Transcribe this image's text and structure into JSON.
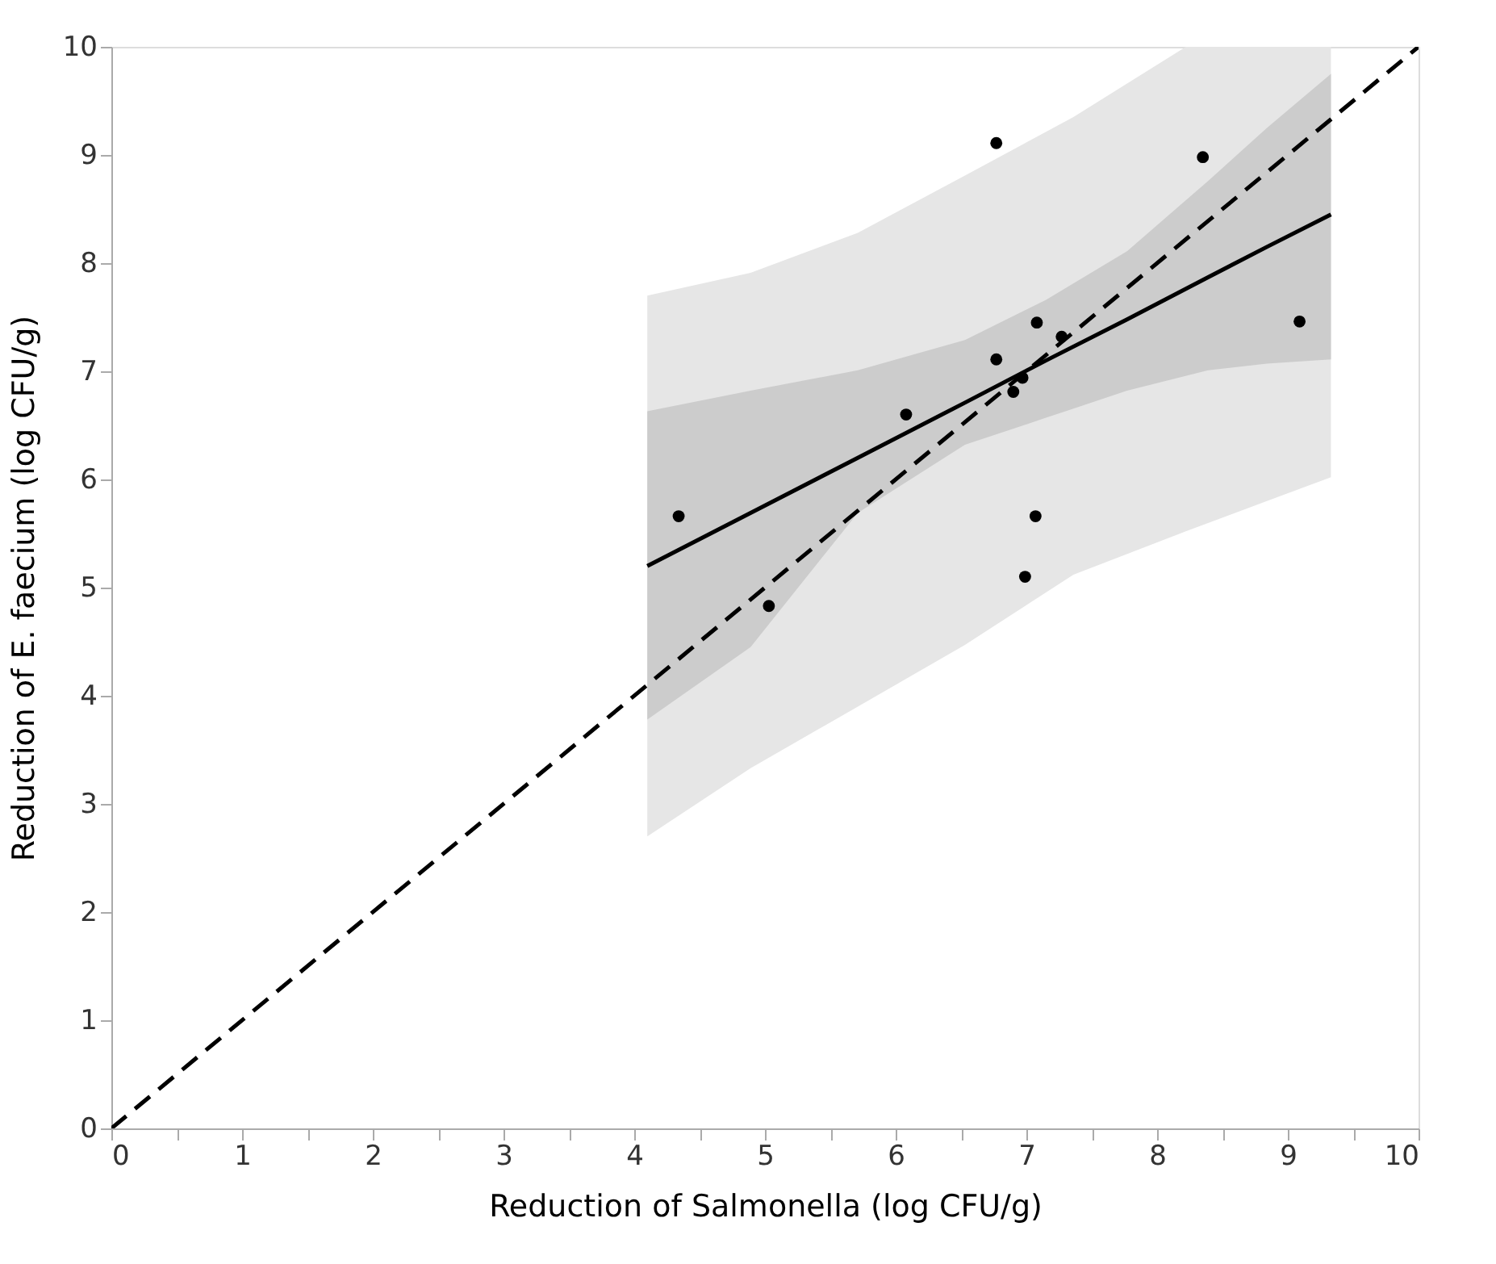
{
  "chart_data": {
    "type": "scatter",
    "xlabel": "Reduction of Salmonella (log CFU/g)",
    "ylabel": "Reduction of E. faecium (log CFU/g)",
    "xlim": [
      0,
      10
    ],
    "ylim": [
      0,
      10
    ],
    "xticks": [
      0,
      {
        "value": 0.5,
        "label": null
      },
      1,
      {
        "value": 1.5,
        "label": null
      },
      2,
      {
        "value": 2.5,
        "label": null
      },
      3,
      {
        "value": 3.5,
        "label": null
      },
      4,
      {
        "value": 4.5,
        "label": null
      },
      5,
      {
        "value": 5.5,
        "label": null
      },
      6,
      {
        "value": 6.5,
        "label": null
      },
      7,
      {
        "value": 7.5,
        "label": null
      },
      8,
      {
        "value": 8.5,
        "label": null
      },
      9,
      {
        "value": 9.5,
        "label": null
      },
      10
    ],
    "yticks": [
      0,
      1,
      2,
      3,
      4,
      5,
      6,
      7,
      8,
      9,
      10
    ],
    "grid": false,
    "series": [
      {
        "type": "line",
        "color": "#e6e6e6",
        "x": [
          4.1,
          4.89,
          5.71,
          6.53,
          7.36,
          8.22,
          8.84,
          9.33
        ],
        "values": [
          null,
          null,
          null,
          null,
          null,
          null,
          null,
          null
        ],
        "lower": [
          2.7,
          3.33,
          3.9,
          4.47,
          5.12,
          5.52,
          5.8,
          6.02
        ],
        "upper": [
          7.7,
          7.91,
          8.28,
          8.81,
          9.35,
          10,
          10,
          10
        ]
      },
      {
        "type": "line",
        "color": "#000000",
        "line_style": "solid",
        "marker": "none",
        "x": [
          4.1,
          4.89,
          5.71,
          6.53,
          7.15,
          7.77,
          8.39,
          8.84,
          9.33
        ],
        "values": [
          5.2,
          5.69,
          6.2,
          6.71,
          7.1,
          7.48,
          7.87,
          8.15,
          8.45
        ],
        "lower": [
          3.78,
          4.45,
          5.69,
          6.32,
          6.57,
          6.82,
          7.01,
          7.07,
          7.11
        ],
        "upper": [
          6.63,
          6.82,
          7.01,
          7.29,
          7.66,
          8.11,
          8.76,
          9.25,
          9.75
        ]
      },
      {
        "type": "line",
        "color": "#000000",
        "line_style": "dashed",
        "marker": "none",
        "x": [
          0,
          10
        ],
        "values": [
          0,
          10
        ]
      },
      {
        "color": "#000000",
        "marker": "circle",
        "x": [
          4.34,
          5.03,
          6.08,
          6.77,
          6.77,
          6.9,
          6.97,
          7.08,
          7.27,
          7.07,
          6.99,
          8.35,
          9.09
        ],
        "values": [
          5.66,
          4.83,
          6.6,
          9.11,
          7.11,
          6.81,
          6.94,
          7.45,
          7.32,
          5.66,
          5.1,
          8.98,
          7.46
        ]
      }
    ]
  }
}
